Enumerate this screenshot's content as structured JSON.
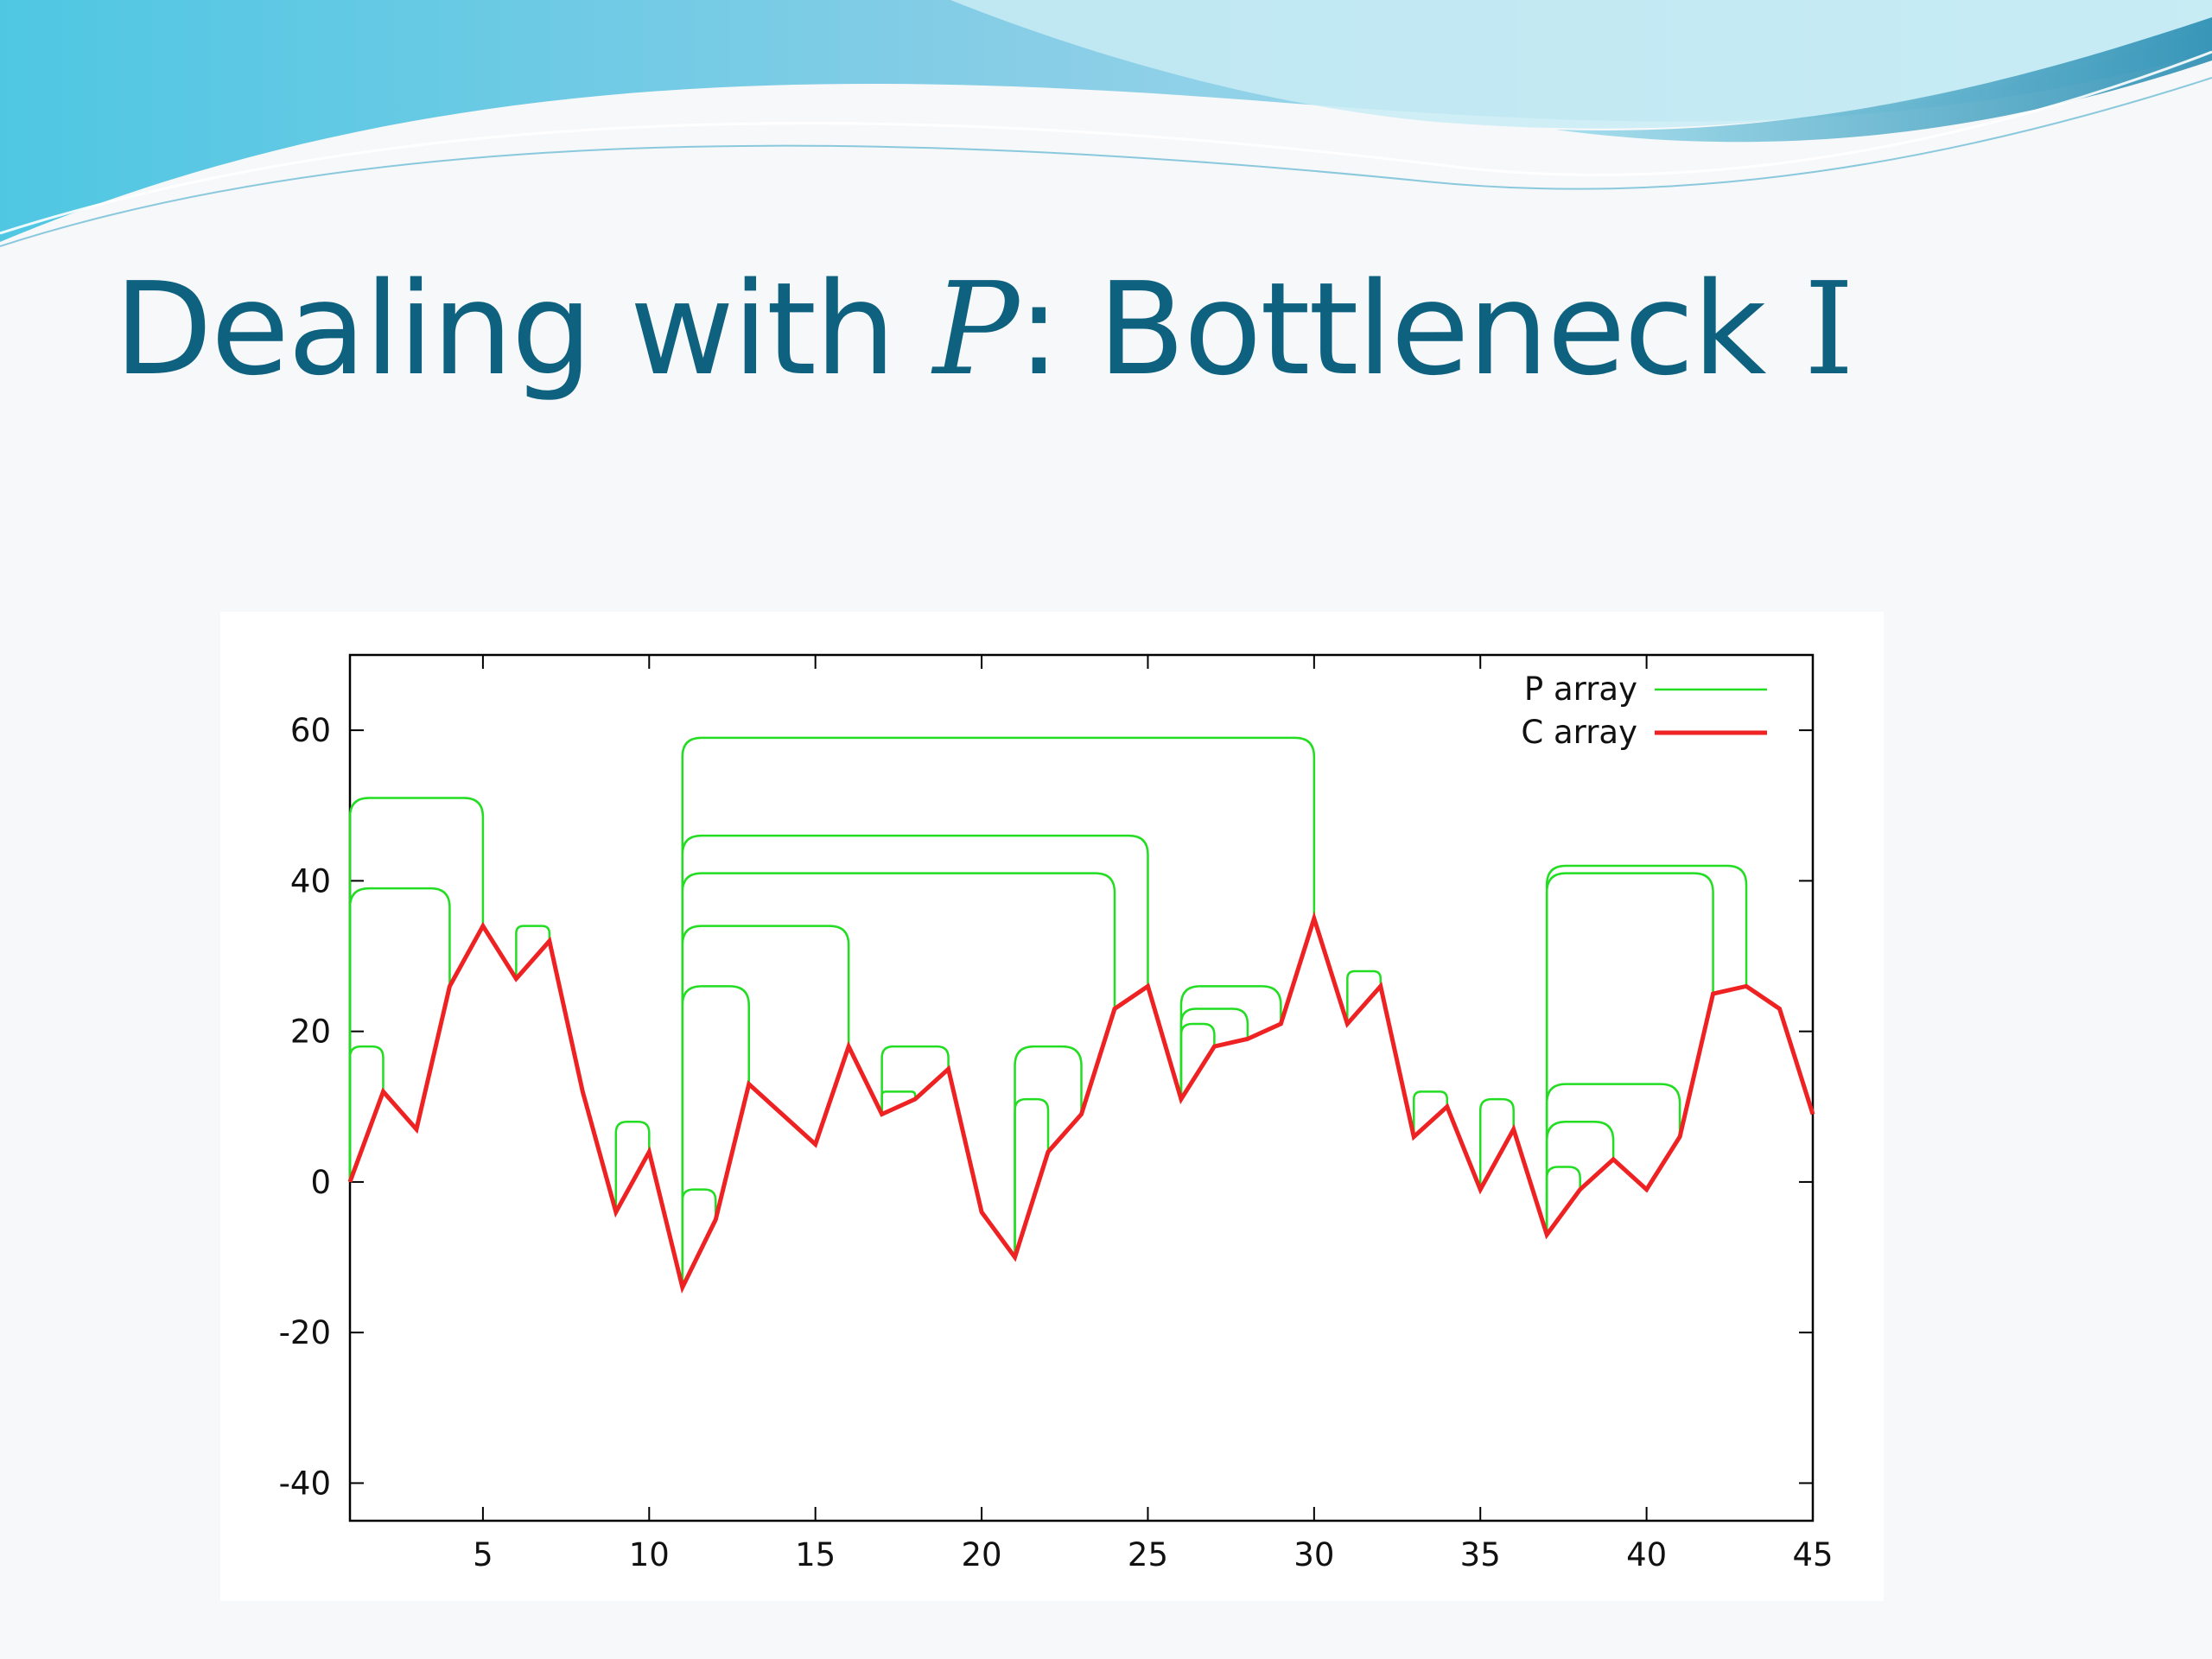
{
  "slide": {
    "title_prefix": "Dealing with ",
    "title_var": "P",
    "title_mid": ": Bottleneck ",
    "title_roman": "I",
    "title_color": "#0e6280",
    "banner_colors": [
      "#3fb8d8",
      "#8fd8ea",
      "#c6ecf5",
      "#0e6f92"
    ]
  },
  "chart_data": {
    "type": "line",
    "title": "",
    "xlabel": "",
    "ylabel": "",
    "xlim": [
      1,
      45
    ],
    "ylim": [
      -45,
      70
    ],
    "x_ticks": [
      5,
      10,
      15,
      20,
      25,
      30,
      35,
      40,
      45
    ],
    "y_ticks": [
      60,
      40,
      20,
      0,
      -20,
      -40
    ],
    "grid": false,
    "legend_position": "top-right",
    "legend": [
      {
        "label": "P array",
        "color": "#22dd22"
      },
      {
        "label": "C array",
        "color": "#ee2222"
      }
    ],
    "series": [
      {
        "name": "C array",
        "color": "#ee2222",
        "x": [
          1,
          2,
          3,
          4,
          5,
          6,
          7,
          8,
          9,
          10,
          11,
          12,
          13,
          14,
          15,
          16,
          17,
          18,
          19,
          20,
          21,
          22,
          23,
          24,
          25,
          26,
          27,
          28,
          29,
          30,
          31,
          32,
          33,
          34,
          35,
          36,
          37,
          38,
          39,
          40,
          41,
          42,
          43,
          44,
          45
        ],
        "y": [
          0,
          12,
          7,
          26,
          34,
          27,
          32,
          12,
          -4,
          4,
          -14,
          -5,
          13,
          9,
          5,
          18,
          9,
          11,
          15,
          -4,
          -10,
          4,
          9,
          23,
          26,
          11,
          18,
          19,
          21,
          35,
          21,
          26,
          6,
          10,
          -1,
          7,
          -7,
          -1,
          3,
          -1,
          6,
          25,
          26,
          23,
          9
        ]
      },
      {
        "name": "P array",
        "color": "#22dd22",
        "brackets": [
          {
            "x1": 1,
            "x2": 5,
            "y": 51
          },
          {
            "x1": 1,
            "x2": 4,
            "y": 39
          },
          {
            "x1": 1,
            "x2": 2,
            "y": 18
          },
          {
            "x1": 6,
            "x2": 7,
            "y": 34
          },
          {
            "x1": 9,
            "x2": 10,
            "y": 8
          },
          {
            "x1": 11,
            "x2": 30,
            "y": 59
          },
          {
            "x1": 11,
            "x2": 25,
            "y": 46
          },
          {
            "x1": 11,
            "x2": 24,
            "y": 41
          },
          {
            "x1": 11,
            "x2": 16,
            "y": 34
          },
          {
            "x1": 11,
            "x2": 13,
            "y": 26
          },
          {
            "x1": 11,
            "x2": 12,
            "y": -1
          },
          {
            "x1": 17,
            "x2": 19,
            "y": 18
          },
          {
            "x1": 17,
            "x2": 18,
            "y": 12
          },
          {
            "x1": 21,
            "x2": 23,
            "y": 18
          },
          {
            "x1": 21,
            "x2": 22,
            "y": 11
          },
          {
            "x1": 26,
            "x2": 29,
            "y": 26
          },
          {
            "x1": 26,
            "x2": 28,
            "y": 23
          },
          {
            "x1": 26,
            "x2": 27,
            "y": 21
          },
          {
            "x1": 31,
            "x2": 32,
            "y": 28
          },
          {
            "x1": 33,
            "x2": 34,
            "y": 12
          },
          {
            "x1": 35,
            "x2": 36,
            "y": 11
          },
          {
            "x1": 37,
            "x2": 43,
            "y": 42
          },
          {
            "x1": 37,
            "x2": 42,
            "y": 41
          },
          {
            "x1": 37,
            "x2": 41,
            "y": 13
          },
          {
            "x1": 37,
            "x2": 39,
            "y": 8
          },
          {
            "x1": 37,
            "x2": 38,
            "y": 2
          }
        ]
      }
    ]
  }
}
